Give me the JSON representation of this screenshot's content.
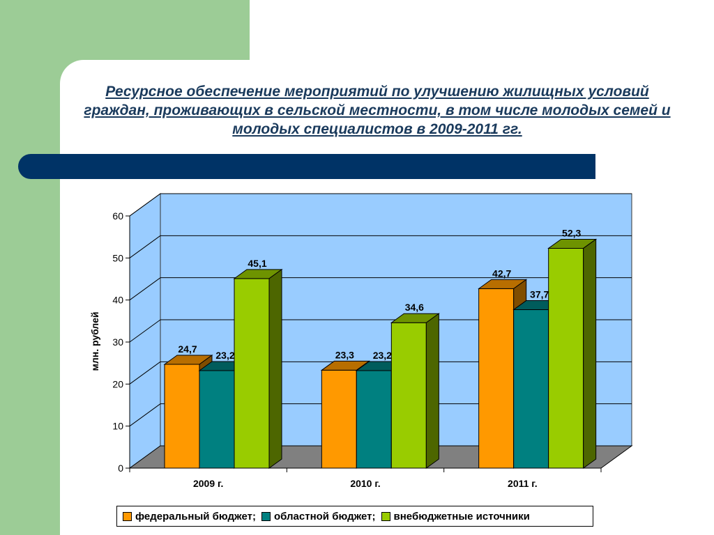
{
  "title": "Ресурсное обеспечение мероприятий по улучшению жилищных условий граждан, проживающих в сельской местности, в том числе молодых семей и молодых специалистов в 2009-2011 гг.",
  "chart_data": {
    "type": "bar",
    "categories": [
      "2009 г.",
      "2010 г.",
      "2011 г."
    ],
    "series": [
      {
        "name": "федеральный бюджет;",
        "values": [
          24.7,
          23.3,
          42.7
        ],
        "labels": [
          "24,7",
          "23,3",
          "42,7"
        ],
        "color": "#ff9900"
      },
      {
        "name": "областной бюджет;",
        "values": [
          23.2,
          23.2,
          37.7
        ],
        "labels": [
          "23,2",
          "23,2",
          "37,7"
        ],
        "color": "#008080"
      },
      {
        "name": "внебюджетные источники",
        "values": [
          45.1,
          34.6,
          52.3
        ],
        "labels": [
          "45,1",
          "34,6",
          "52,3"
        ],
        "color": "#99cc00"
      }
    ],
    "ylabel": "млн. рублей",
    "ylim": [
      0,
      60
    ],
    "yticks": [
      0,
      10,
      20,
      30,
      40,
      50,
      60
    ],
    "grid": true,
    "legend": "bottom",
    "wall_color": "#99ccff",
    "floor_color": "#808080"
  }
}
